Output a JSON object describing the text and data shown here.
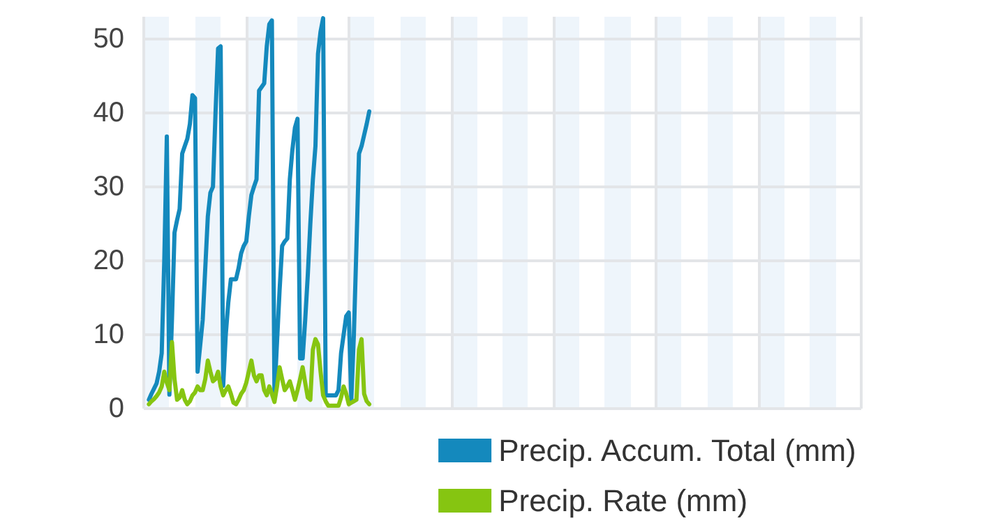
{
  "chart_data": {
    "type": "line",
    "categories": [
      null,
      null,
      null,
      null,
      null,
      null,
      null,
      null,
      null,
      null,
      null,
      null,
      null,
      null,
      null,
      null,
      null,
      null,
      null,
      null,
      null,
      null,
      null,
      null,
      null,
      null,
      null,
      null,
      null,
      null,
      null,
      null,
      null,
      null,
      null,
      null,
      null,
      null,
      null,
      null,
      null,
      null,
      null,
      null,
      null,
      null,
      null,
      null,
      null,
      null,
      null,
      null,
      null,
      null,
      null,
      null,
      null,
      null,
      null,
      null,
      null,
      null,
      null,
      null,
      null,
      null,
      null,
      null,
      null,
      null,
      null,
      null,
      null,
      null,
      null,
      null,
      null,
      null,
      null,
      null,
      null,
      null,
      null,
      null,
      null,
      null,
      null,
      null,
      null,
      null,
      null,
      null,
      null,
      null,
      null,
      null,
      null,
      null,
      null,
      null,
      null,
      null,
      null,
      null,
      null,
      null,
      null,
      null,
      null,
      null,
      null,
      null,
      null,
      null,
      null,
      null,
      null,
      null,
      null,
      null,
      null,
      null,
      null,
      null,
      null,
      null,
      null,
      null,
      null,
      null,
      null,
      null,
      null,
      null,
      null,
      null,
      null,
      null,
      null,
      null,
      null,
      null,
      null,
      null,
      null,
      null,
      null,
      null,
      null,
      null,
      null,
      null,
      null,
      null,
      null,
      null,
      null,
      null,
      null,
      null,
      null,
      null,
      null,
      null,
      null,
      null,
      null,
      null,
      null,
      null,
      null,
      null,
      null,
      null,
      null,
      null,
      null,
      null,
      null,
      null,
      null,
      null,
      null,
      null,
      null,
      null,
      null,
      null,
      null,
      null,
      null,
      null,
      null,
      null,
      null,
      null,
      null,
      null,
      null,
      null,
      null,
      null,
      null,
      null,
      null,
      null,
      null,
      null,
      null,
      null,
      null,
      null,
      null,
      null,
      null,
      null,
      null,
      null,
      null,
      null,
      null,
      null,
      null,
      null,
      null,
      null,
      null,
      null,
      null,
      null,
      null,
      null,
      null,
      null,
      null,
      null,
      null,
      null,
      null,
      null,
      null,
      null,
      null,
      null,
      null,
      null,
      null,
      null,
      null,
      null,
      null,
      null,
      null,
      null,
      null,
      null,
      null,
      null,
      null,
      null,
      null,
      null,
      null,
      null,
      null,
      null,
      null,
      null,
      null,
      null,
      null,
      null,
      null,
      null,
      null,
      null,
      null,
      null,
      null,
      null,
      null
    ],
    "ylim": [
      0,
      53
    ],
    "yticks": [
      0,
      10,
      20,
      30,
      40,
      50
    ],
    "tick_labels": "y",
    "grid": true,
    "legend": "bottom right",
    "line_style": "solid",
    "series": [
      {
        "name": "Precip. Accum. Total (mm)",
        "color": "#1489bd",
        "values": [
          null,
          null,
          1.2,
          2.0,
          2.7,
          3.4,
          5.0,
          7.5,
          20,
          36.8,
          1.9,
          12,
          23.8,
          25.5,
          27,
          34.5,
          35.5,
          36.5,
          38.5,
          42.4,
          42,
          5,
          8.5,
          12,
          19,
          26,
          29.2,
          30,
          40,
          48.7,
          49,
          3.1,
          10,
          14.4,
          17.5,
          17.5,
          17.5,
          19,
          21,
          22,
          22.6,
          26,
          28.9,
          30,
          31,
          43,
          43.5,
          44,
          49,
          52,
          52.5,
          1.8,
          9,
          16,
          22,
          22.6,
          23,
          31,
          35,
          38,
          39.2,
          6.8,
          6.8,
          12,
          18,
          25,
          31,
          35.5,
          48,
          51,
          52.8,
          1.8,
          1.8,
          1.8,
          1.8,
          1.8,
          2.5,
          7.5,
          10,
          12.5,
          13,
          1.2,
          10,
          22,
          34.5,
          35.5,
          37,
          38.5,
          40.2,
          null,
          null,
          null,
          null,
          null,
          null,
          null,
          null,
          null,
          null,
          null,
          null,
          null,
          null,
          null,
          null,
          null,
          null,
          null,
          null,
          null,
          null,
          null,
          null,
          null,
          null,
          null,
          null,
          null,
          null,
          null,
          null,
          null,
          null,
          null,
          null,
          null,
          null,
          null,
          null,
          null,
          null,
          null,
          null,
          null,
          null,
          null,
          null,
          null,
          null,
          null,
          null,
          null,
          null,
          null,
          null,
          null,
          null,
          null,
          null,
          null,
          null,
          null,
          null,
          null,
          null,
          null,
          null,
          null,
          null,
          null,
          null,
          null,
          null,
          null,
          null,
          null,
          null,
          null,
          null,
          null,
          null,
          null,
          null,
          null,
          null,
          null,
          null,
          null,
          null,
          null,
          null,
          null,
          null,
          null,
          null,
          null,
          null,
          null,
          null,
          null,
          null,
          null,
          null,
          null,
          null,
          null,
          null,
          null,
          null,
          null,
          null,
          null,
          null,
          null,
          null,
          null,
          null,
          null,
          null,
          null,
          null,
          null,
          null,
          null,
          null,
          null,
          null,
          null,
          null,
          null,
          null,
          null,
          null,
          null,
          null,
          null,
          null,
          null,
          null,
          null,
          null,
          null,
          null,
          null,
          null,
          null,
          null,
          null,
          null,
          null,
          null,
          null,
          null,
          null,
          null,
          null,
          null,
          null,
          null,
          null,
          null,
          null,
          null,
          null,
          null,
          null,
          null,
          null,
          null,
          null,
          null,
          null,
          null,
          null,
          null,
          null,
          null,
          null,
          null,
          null,
          null,
          null,
          null,
          null,
          null,
          null,
          null,
          null,
          null,
          null,
          null
        ]
      },
      {
        "name": "Precip. Rate (mm)",
        "color": "#86c511",
        "values": [
          null,
          null,
          0.6,
          1,
          1.3,
          1.7,
          2.2,
          3,
          5,
          3.5,
          2.5,
          9,
          4,
          1.2,
          1.5,
          2.5,
          1.2,
          0.6,
          1,
          1.8,
          2.2,
          3,
          2.5,
          2.5,
          4,
          6.5,
          5,
          3.7,
          4,
          5,
          3,
          1.8,
          2.5,
          3,
          2,
          0.8,
          0.6,
          1.2,
          2,
          2.5,
          3.5,
          5,
          6.5,
          4.5,
          3.7,
          4.5,
          4.5,
          2.5,
          1.8,
          3,
          2,
          0.9,
          3,
          5.6,
          4,
          2.5,
          3,
          3.7,
          2.5,
          1.2,
          2.5,
          4,
          5.6,
          3.5,
          1.5,
          1.2,
          8,
          9.4,
          8.7,
          5,
          1.8,
          1,
          0.4,
          0.4,
          0.4,
          0.4,
          0.4,
          1.5,
          3,
          2,
          0.6,
          0.8,
          1,
          1.2,
          8,
          9.4,
          2,
          1,
          0.6,
          null,
          null,
          null,
          null,
          null,
          null,
          null,
          null,
          null,
          null,
          null,
          null,
          null,
          null,
          null,
          null,
          null,
          null,
          null,
          null,
          null,
          null,
          null,
          null,
          null,
          null,
          null,
          null,
          null,
          null,
          null,
          null,
          null,
          null,
          null,
          null,
          null,
          null,
          null,
          null,
          null,
          null,
          null,
          null,
          null,
          null,
          null,
          null,
          null,
          null,
          null,
          null,
          null,
          null,
          null,
          null,
          null,
          null,
          null,
          null,
          null,
          null,
          null,
          null,
          null,
          null,
          null,
          null,
          null,
          null,
          null,
          null,
          null,
          null,
          null,
          null,
          null,
          null,
          null,
          null,
          null,
          null,
          null,
          null,
          null,
          null,
          null,
          null,
          null,
          null,
          null,
          null,
          null,
          null,
          null,
          null,
          null,
          null,
          null,
          null,
          null,
          null,
          null,
          null,
          null,
          null,
          null,
          null,
          null,
          null,
          null,
          null,
          null,
          null,
          null,
          null,
          null,
          null,
          null,
          null,
          null,
          null,
          null,
          null,
          null,
          null,
          null,
          null,
          null,
          null,
          null,
          null,
          null,
          null,
          null,
          null,
          null,
          null,
          null,
          null,
          null,
          null,
          null,
          null,
          null,
          null,
          null,
          null,
          null,
          null,
          null,
          null,
          null,
          null,
          null,
          null,
          null,
          null,
          null,
          null,
          null,
          null,
          null,
          null,
          null,
          null,
          null,
          null,
          null,
          null,
          null,
          null,
          null,
          null,
          null,
          null,
          null,
          null,
          null,
          null,
          null,
          null,
          null,
          null,
          null,
          null,
          null,
          null,
          null,
          null,
          null,
          null
        ]
      }
    ]
  }
}
